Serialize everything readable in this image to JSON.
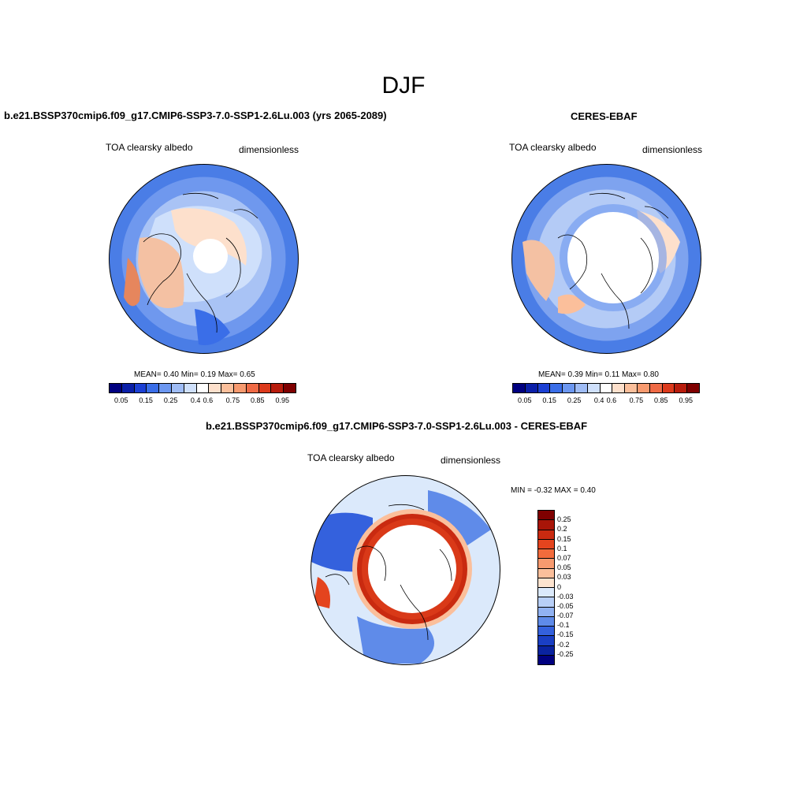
{
  "figure": {
    "title": "DJF"
  },
  "panels": {
    "model": {
      "title": "b.e21.BSSP370cmip6.f09_g17.CMIP6-SSP3-7.0-SSP1-2.6Lu.003 (yrs 2065-2089)",
      "left_label": "TOA clearsky albedo",
      "right_label": "dimensionless",
      "stats": "MEAN=   0.40  Min=    0.19  Max=    0.65"
    },
    "obs": {
      "title": "CERES-EBAF",
      "left_label": "TOA clearsky albedo",
      "right_label": "dimensionless",
      "stats": "MEAN=   0.39  Min=    0.11  Max=    0.80"
    },
    "diff": {
      "title": "b.e21.BSSP370cmip6.f09_g17.CMIP6-SSP3-7.0-SSP1-2.6Lu.003 - CERES-EBAF",
      "left_label": "TOA clearsky albedo",
      "right_label": "dimensionless",
      "stats": "MIN =  -0.32 MAX =    0.40"
    }
  },
  "colorbars": {
    "abs_labels": [
      "0.05",
      "0.15",
      "0.25",
      "0.4",
      "0.6",
      "0.75",
      "0.85",
      "0.95"
    ],
    "abs_colors": [
      "#000080",
      "#0a1fa8",
      "#1c40d4",
      "#3a6ee8",
      "#6c97f0",
      "#9fbcf5",
      "#cfe0fb",
      "#ffffff",
      "#fde0cc",
      "#fbbf9b",
      "#f79a6f",
      "#ef6a45",
      "#dc3a1c",
      "#b81c0c",
      "#7f0000"
    ],
    "diff_labels": [
      "0.25",
      "0.2",
      "0.15",
      "0.1",
      "0.07",
      "0.05",
      "0.03",
      "0",
      "-0.03",
      "-0.05",
      "-0.07",
      "-0.1",
      "-0.15",
      "-0.2",
      "-0.25"
    ],
    "diff_colors": [
      "#7f0000",
      "#a81508",
      "#c92a10",
      "#e4441e",
      "#f26b3c",
      "#f79a6f",
      "#fbbf9b",
      "#fde3cf",
      "#dbe9fb",
      "#b8cff7",
      "#91b2f2",
      "#5f8be9",
      "#3461dd",
      "#1a3fc4",
      "#0a23a0",
      "#000080"
    ]
  }
}
